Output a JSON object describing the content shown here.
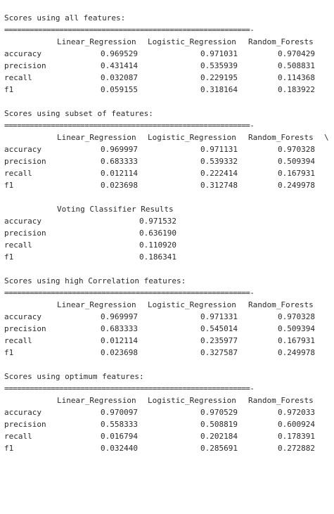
{
  "columns": [
    "Linear_Regression",
    "Logistic_Regression",
    "Random_Forests"
  ],
  "row_labels": [
    "accuracy",
    "precision",
    "recall",
    "f1"
  ],
  "rule": "==========================================================-",
  "sections": [
    {
      "heading": "Scores using all features:",
      "continuation": "",
      "rows": [
        [
          "0.969529",
          "0.971031",
          "0.970429"
        ],
        [
          "0.431414",
          "0.535939",
          "0.508831"
        ],
        [
          "0.032087",
          "0.229195",
          "0.114368"
        ],
        [
          "0.059155",
          "0.318164",
          "0.183922"
        ]
      ]
    },
    {
      "heading": "Scores using subset of features:",
      "continuation": "\\",
      "rows": [
        [
          "0.969997",
          "0.971131",
          "0.970328"
        ],
        [
          "0.683333",
          "0.539332",
          "0.509394"
        ],
        [
          "0.012114",
          "0.222414",
          "0.167931"
        ],
        [
          "0.023698",
          "0.312748",
          "0.249978"
        ]
      ]
    },
    {
      "heading": "Scores using high Correlation features:",
      "continuation": "",
      "rows": [
        [
          "0.969997",
          "0.971331",
          "0.970328"
        ],
        [
          "0.683333",
          "0.545014",
          "0.509394"
        ],
        [
          "0.012114",
          "0.235977",
          "0.167931"
        ],
        [
          "0.023698",
          "0.327587",
          "0.249978"
        ]
      ]
    },
    {
      "heading": "Scores using optimum features:",
      "continuation": "",
      "rows": [
        [
          "0.970097",
          "0.970529",
          "0.972033"
        ],
        [
          "0.558333",
          "0.508819",
          "0.600924"
        ],
        [
          "0.016794",
          "0.202184",
          "0.178391"
        ],
        [
          "0.032440",
          "0.285691",
          "0.272882"
        ]
      ]
    }
  ],
  "voting": {
    "title": "Voting Classifier Results",
    "values": [
      "0.971532",
      "0.636190",
      "0.110920",
      "0.186341"
    ]
  }
}
